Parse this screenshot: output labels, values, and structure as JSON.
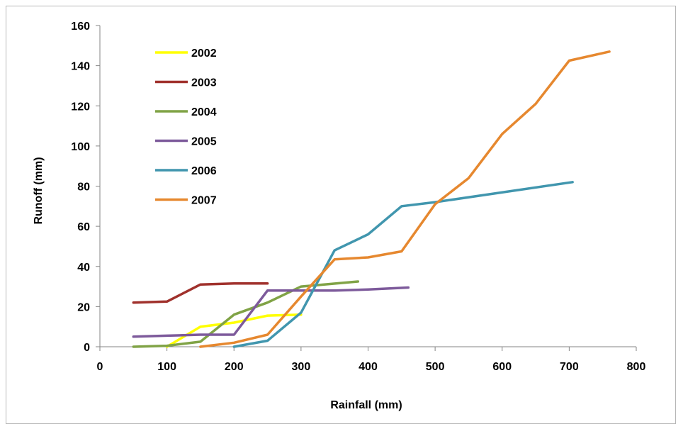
{
  "chart_data": {
    "type": "line",
    "title": "",
    "xlabel": "Rainfall (mm)",
    "ylabel": "Runoff (mm)",
    "xlim": [
      0,
      800
    ],
    "ylim": [
      0,
      160
    ],
    "xticks": [
      0,
      100,
      200,
      300,
      400,
      500,
      600,
      700,
      800
    ],
    "yticks": [
      0,
      20,
      40,
      60,
      80,
      100,
      120,
      140,
      160
    ],
    "grid": false,
    "legend_position": "top-left",
    "series": [
      {
        "name": "2002",
        "color": "#ffff00",
        "points": [
          [
            100,
            0
          ],
          [
            150,
            10
          ],
          [
            200,
            12
          ],
          [
            250,
            15.5
          ],
          [
            300,
            16
          ]
        ]
      },
      {
        "name": "2003",
        "color": "#a0312c",
        "points": [
          [
            50,
            22
          ],
          [
            100,
            22.5
          ],
          [
            150,
            31
          ],
          [
            200,
            31.5
          ],
          [
            250,
            31.5
          ]
        ]
      },
      {
        "name": "2004",
        "color": "#80a346",
        "points": [
          [
            50,
            0
          ],
          [
            100,
            0.5
          ],
          [
            150,
            2.5
          ],
          [
            200,
            16
          ],
          [
            250,
            22
          ],
          [
            300,
            30
          ],
          [
            385,
            32.5
          ]
        ]
      },
      {
        "name": "2005",
        "color": "#7d5a9b",
        "points": [
          [
            50,
            5
          ],
          [
            100,
            5.5
          ],
          [
            150,
            6
          ],
          [
            200,
            6
          ],
          [
            250,
            28
          ],
          [
            300,
            28
          ],
          [
            350,
            28
          ],
          [
            400,
            28.5
          ],
          [
            460,
            29.5
          ]
        ]
      },
      {
        "name": "2006",
        "color": "#4196ae",
        "points": [
          [
            200,
            0
          ],
          [
            250,
            3
          ],
          [
            300,
            17
          ],
          [
            350,
            48
          ],
          [
            400,
            56
          ],
          [
            450,
            70
          ],
          [
            500,
            72
          ],
          [
            705,
            82
          ]
        ]
      },
      {
        "name": "2007",
        "color": "#e6882f",
        "points": [
          [
            150,
            0
          ],
          [
            200,
            2
          ],
          [
            250,
            6
          ],
          [
            300,
            25
          ],
          [
            350,
            43.5
          ],
          [
            400,
            44.5
          ],
          [
            450,
            47.5
          ],
          [
            500,
            71
          ],
          [
            550,
            84
          ],
          [
            600,
            106
          ],
          [
            650,
            121
          ],
          [
            700,
            142.5
          ],
          [
            760,
            147
          ]
        ]
      }
    ]
  }
}
